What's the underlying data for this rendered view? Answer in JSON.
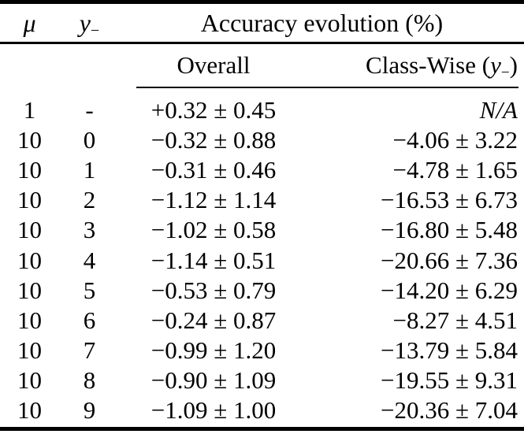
{
  "table": {
    "headers": {
      "mu": "μ",
      "y_var": "y",
      "y_sub": "−",
      "group": "Accuracy evolution (%)",
      "overall": "Overall",
      "class_wise_prefix": "Class-Wise (",
      "class_wise_var": "y",
      "class_wise_sub": "−",
      "class_wise_suffix": ")"
    },
    "rows": [
      {
        "mu": "1",
        "y_minus": "-",
        "overall": "+0.32 ± 0.45",
        "class_wise": "N/A"
      },
      {
        "mu": "10",
        "y_minus": "0",
        "overall": "−0.32 ± 0.88",
        "class_wise": "−4.06 ± 3.22"
      },
      {
        "mu": "10",
        "y_minus": "1",
        "overall": "−0.31 ± 0.46",
        "class_wise": "−4.78 ± 1.65"
      },
      {
        "mu": "10",
        "y_minus": "2",
        "overall": "−1.12 ± 1.14",
        "class_wise": "−16.53 ± 6.73"
      },
      {
        "mu": "10",
        "y_minus": "3",
        "overall": "−1.02 ± 0.58",
        "class_wise": "−16.80 ± 5.48"
      },
      {
        "mu": "10",
        "y_minus": "4",
        "overall": "−1.14 ± 0.51",
        "class_wise": "−20.66 ± 7.36"
      },
      {
        "mu": "10",
        "y_minus": "5",
        "overall": "−0.53 ± 0.79",
        "class_wise": "−14.20 ± 6.29"
      },
      {
        "mu": "10",
        "y_minus": "6",
        "overall": "−0.24 ± 0.87",
        "class_wise": "−8.27 ± 4.51"
      },
      {
        "mu": "10",
        "y_minus": "7",
        "overall": "−0.99 ± 1.20",
        "class_wise": "−13.79 ± 5.84"
      },
      {
        "mu": "10",
        "y_minus": "8",
        "overall": "−0.90 ± 1.09",
        "class_wise": "−19.55 ± 9.31"
      },
      {
        "mu": "10",
        "y_minus": "9",
        "overall": "−1.09 ± 1.00",
        "class_wise": "−20.36 ± 7.04"
      }
    ]
  }
}
